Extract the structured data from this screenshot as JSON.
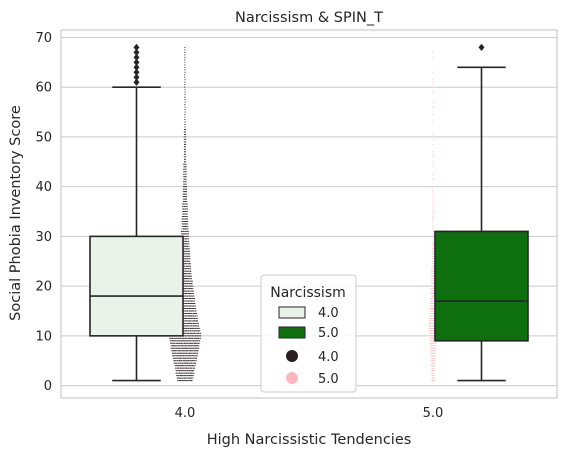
{
  "chart_data": {
    "type": "box",
    "title": "Narcissism & SPIN_T",
    "xlabel": "High Narcissistic Tendencies",
    "ylabel": "Social Phobia Inventory Score",
    "categories": [
      "4.0",
      "5.0"
    ],
    "ylim": [
      -2.5,
      71.5
    ],
    "yticks": [
      0,
      10,
      20,
      30,
      40,
      50,
      60,
      70
    ],
    "yticklabels": [
      "0",
      "10",
      "20",
      "30",
      "40",
      "50",
      "60",
      "70"
    ],
    "grid": true,
    "boxes": [
      {
        "category": "4.0",
        "min": 1,
        "q1": 10,
        "median": 18,
        "q3": 30,
        "max": 60,
        "outliers": [
          61,
          62,
          63,
          64,
          65,
          66,
          67,
          68
        ],
        "color": "#eaf3ea"
      },
      {
        "category": "5.0",
        "min": 1,
        "q1": 9,
        "median": 17,
        "q3": 31,
        "max": 64,
        "outliers": [
          68
        ],
        "color": "#0e6f0e"
      }
    ],
    "swarms": [
      {
        "category": "4.0",
        "color": "#2a1f22",
        "min": 1,
        "max": 68,
        "mode": 10
      },
      {
        "category": "5.0",
        "color": "#ffb6c1",
        "min": 1,
        "max": 68,
        "mode": 12
      }
    ],
    "legend": {
      "title": "Narcissism",
      "position": "lower center",
      "entries": [
        {
          "label": "4.0",
          "marker": "box",
          "color": "#eaf3ea"
        },
        {
          "label": "5.0",
          "marker": "box",
          "color": "#0e6f0e"
        },
        {
          "label": "4.0",
          "marker": "dot",
          "color": "#2a1f22"
        },
        {
          "label": "5.0",
          "marker": "dot",
          "color": "#ffb6c1"
        }
      ]
    }
  }
}
